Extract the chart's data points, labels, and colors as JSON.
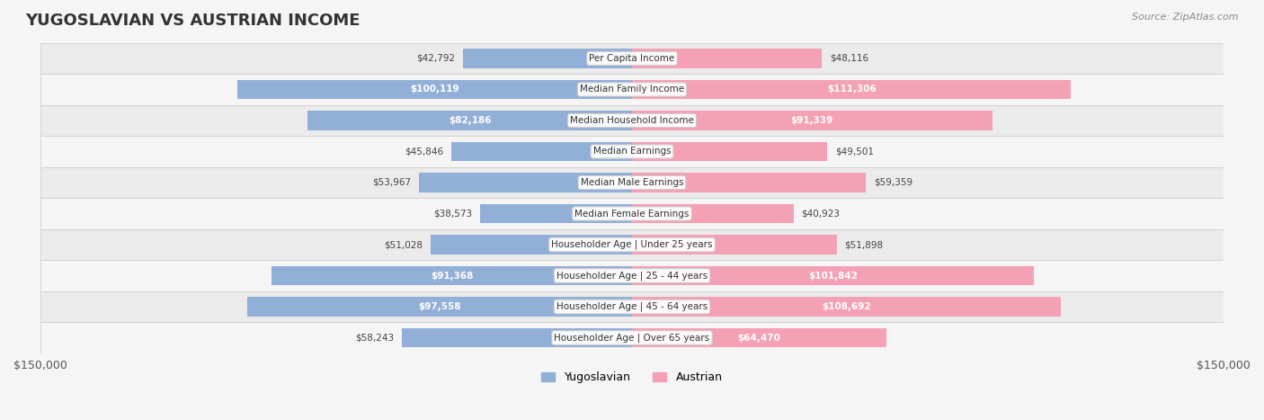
{
  "title": "YUGOSLAVIAN VS AUSTRIAN INCOME",
  "source": "Source: ZipAtlas.com",
  "categories": [
    "Per Capita Income",
    "Median Family Income",
    "Median Household Income",
    "Median Earnings",
    "Median Male Earnings",
    "Median Female Earnings",
    "Householder Age | Under 25 years",
    "Householder Age | 25 - 44 years",
    "Householder Age | 45 - 64 years",
    "Householder Age | Over 65 years"
  ],
  "yugoslavian_values": [
    42792,
    100119,
    82186,
    45846,
    53967,
    38573,
    51028,
    91368,
    97558,
    58243
  ],
  "austrian_values": [
    48116,
    111306,
    91339,
    49501,
    59359,
    40923,
    51898,
    101842,
    108692,
    64470
  ],
  "yugoslavian_labels": [
    "$42,792",
    "$100,119",
    "$82,186",
    "$45,846",
    "$53,967",
    "$38,573",
    "$51,028",
    "$91,368",
    "$97,558",
    "$58,243"
  ],
  "austrian_labels": [
    "$48,116",
    "$111,306",
    "$91,339",
    "$49,501",
    "$59,359",
    "$40,923",
    "$51,898",
    "$101,842",
    "$108,692",
    "$64,470"
  ],
  "max_value": 150000,
  "blue_color": "#92afd7",
  "pink_color": "#f4a0b5",
  "blue_dark": "#6b8cba",
  "pink_dark": "#e8799a",
  "label_color_outside": "#555555",
  "label_color_inside": "#ffffff",
  "bg_color": "#f5f5f5",
  "row_bg_even": "#f0f0f0",
  "row_bg_odd": "#fafafa",
  "inside_threshold": 60000
}
